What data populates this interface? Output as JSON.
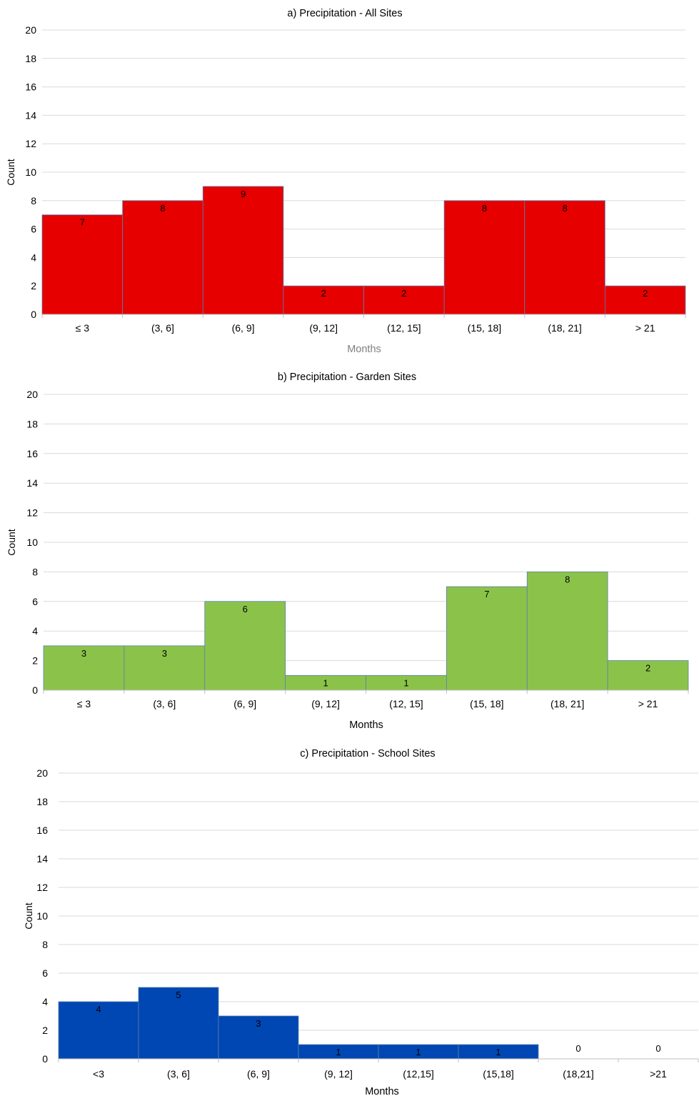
{
  "chart_data": [
    {
      "type": "bar",
      "title": "a) Precipitation - All Sites",
      "xlabel": "Months",
      "ylabel": "Count",
      "ylim": [
        0,
        20
      ],
      "yticks": [
        0,
        2,
        4,
        6,
        8,
        10,
        12,
        14,
        16,
        18,
        20
      ],
      "categories": [
        "≤ 3",
        "(3, 6]",
        "(6, 9]",
        "(9, 12]",
        "(12, 15]",
        "(15, 18]",
        "(18, 21]",
        "> 21"
      ],
      "values": [
        7,
        8,
        9,
        2,
        2,
        8,
        8,
        2
      ],
      "bar_color": "#e60000",
      "xlabel_color": "#7f7f7f",
      "grid": true
    },
    {
      "type": "bar",
      "title": "b) Precipitation - Garden Sites",
      "xlabel": "Months",
      "ylabel": "Count",
      "ylim": [
        0,
        20
      ],
      "yticks": [
        0,
        2,
        4,
        6,
        8,
        10,
        12,
        14,
        16,
        18,
        20
      ],
      "categories": [
        "≤ 3",
        "(3, 6]",
        "(6, 9]",
        "(9, 12]",
        "(12, 15]",
        "(15, 18]",
        "(18, 21]",
        "> 21"
      ],
      "values": [
        3,
        3,
        6,
        1,
        1,
        7,
        8,
        2
      ],
      "bar_color": "#8bc34a",
      "xlabel_color": "#000000",
      "grid": true
    },
    {
      "type": "bar",
      "title": "c) Precipitation - School Sites",
      "xlabel": "Months",
      "ylabel": "Count",
      "ylim": [
        0,
        20
      ],
      "yticks": [
        0,
        2,
        4,
        6,
        8,
        10,
        12,
        14,
        16,
        18,
        20
      ],
      "categories": [
        "<3",
        "(3, 6]",
        "(6, 9]",
        "(9, 12]",
        "(12,15]",
        "(15,18]",
        "(18,21]",
        ">21"
      ],
      "values": [
        4,
        5,
        3,
        1,
        1,
        1,
        0,
        0
      ],
      "bar_color": "#0047b3",
      "xlabel_color": "#000000",
      "grid": true
    }
  ]
}
